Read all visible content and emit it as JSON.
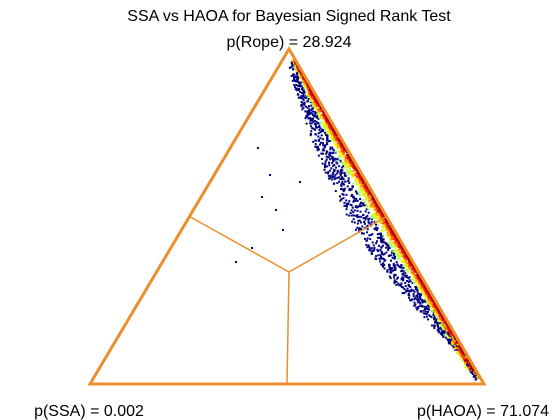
{
  "chart_data": {
    "type": "scatter",
    "plot_kind": "ternary-simplex",
    "title": "SSA vs HAOA for Bayesian Signed Rank Test",
    "subtitle": "p(Rope) = 28.924",
    "vertex_labels": {
      "top": "p(Rope) = 28.924",
      "bottom_left": "p(SSA) = 0.002",
      "bottom_right": "p(HAOA) = 71.074"
    },
    "probabilities": {
      "rope": 28.924,
      "ssa": 0.002,
      "haoa": 71.074
    },
    "colors": {
      "frame": "#ec8f2a",
      "sparse_points": "#000080",
      "colormap": [
        "#00008f",
        "#0000ff",
        "#0080ff",
        "#00ffff",
        "#80ff80",
        "#ffff00",
        "#ff8000",
        "#ff0000",
        "#800000"
      ]
    },
    "sample_density": {
      "description_axis": "fraction along right edge (0 = p(Rope) vertex, 1 = p(HAOA) vertex)",
      "edge_band": [
        [
          0.0,
          0.0
        ],
        [
          1.0,
          1.0
        ]
      ]
    },
    "grid": false,
    "legend": "none"
  }
}
